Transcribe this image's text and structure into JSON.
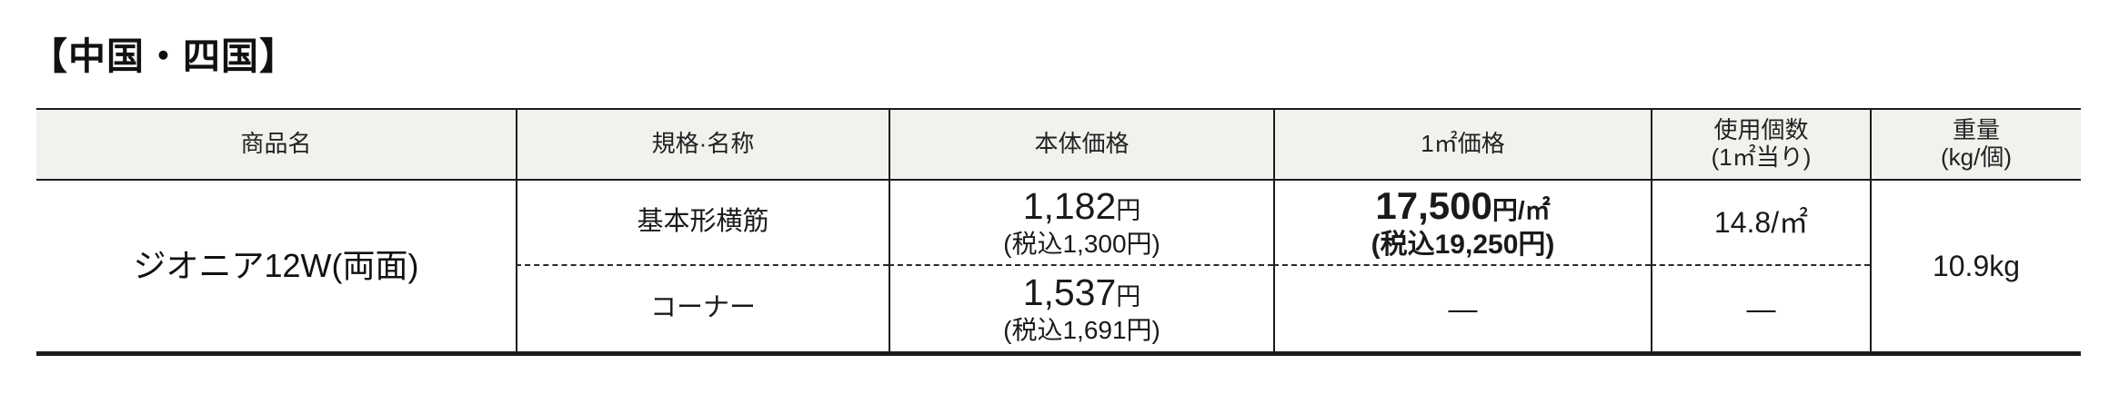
{
  "page": {
    "title": "【中国・四国】"
  },
  "table": {
    "columns": [
      {
        "label": "商品名"
      },
      {
        "label": "規格·名称"
      },
      {
        "label": "本体価格"
      },
      {
        "label": "1㎡価格"
      },
      {
        "label": "使用個数",
        "sub": "(1㎡当り)"
      },
      {
        "label": "重量",
        "sub": "(kg/個)"
      }
    ],
    "product": {
      "name": "ジオニア12W(両面)",
      "weight": "10.9kg"
    },
    "rows": [
      {
        "spec": "基本形横筋",
        "price_value": "1,182",
        "price_unit": "円",
        "price_tax": "(税込1,300円)",
        "sqm_value": "17,500",
        "sqm_unit": "円/㎡",
        "sqm_tax": "(税込19,250円)",
        "usage": "14.8/㎡"
      },
      {
        "spec": "コーナー",
        "price_value": "1,537",
        "price_unit": "円",
        "price_tax": "(税込1,691円)",
        "sqm_value": "—",
        "usage": "—"
      }
    ]
  },
  "colors": {
    "header_bg": "#f2f1ee",
    "border": "#1b1b1b",
    "text": "#1a1a1a"
  }
}
